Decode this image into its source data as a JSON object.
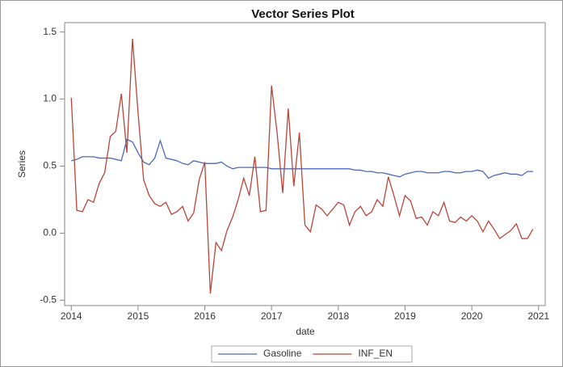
{
  "chart_data": {
    "type": "line",
    "title": "Vector Series Plot",
    "x_label": "date",
    "y_label": "Series",
    "x": [
      2014,
      2014.083,
      2014.167,
      2014.25,
      2014.333,
      2014.417,
      2014.5,
      2014.583,
      2014.667,
      2014.75,
      2014.833,
      2014.917,
      2015,
      2015.083,
      2015.167,
      2015.25,
      2015.333,
      2015.417,
      2015.5,
      2015.583,
      2015.667,
      2015.75,
      2015.833,
      2015.917,
      2016,
      2016.083,
      2016.167,
      2016.25,
      2016.333,
      2016.417,
      2016.5,
      2016.583,
      2016.667,
      2016.75,
      2016.833,
      2016.917,
      2017,
      2017.083,
      2017.167,
      2017.25,
      2017.333,
      2017.417,
      2017.5,
      2017.583,
      2017.667,
      2017.75,
      2017.833,
      2017.917,
      2018,
      2018.083,
      2018.167,
      2018.25,
      2018.333,
      2018.417,
      2018.5,
      2018.583,
      2018.667,
      2018.75,
      2018.833,
      2018.917,
      2019,
      2019.083,
      2019.167,
      2019.25,
      2019.333,
      2019.417,
      2019.5,
      2019.583,
      2019.667,
      2019.75,
      2019.833,
      2019.917,
      2020,
      2020.083,
      2020.167,
      2020.25,
      2020.333,
      2020.417,
      2020.5,
      2020.583,
      2020.667,
      2020.75,
      2020.833,
      2020.917
    ],
    "series": [
      {
        "name": "Gasoline",
        "color": "#4a6ab8",
        "values": [
          0.54,
          0.55,
          0.57,
          0.57,
          0.57,
          0.56,
          0.56,
          0.56,
          0.55,
          0.54,
          0.7,
          0.68,
          0.6,
          0.53,
          0.51,
          0.56,
          0.69,
          0.56,
          0.55,
          0.54,
          0.52,
          0.51,
          0.54,
          0.53,
          0.52,
          0.52,
          0.52,
          0.53,
          0.5,
          0.48,
          0.49,
          0.49,
          0.49,
          0.49,
          0.49,
          0.49,
          0.48,
          0.48,
          0.48,
          0.48,
          0.48,
          0.48,
          0.48,
          0.48,
          0.48,
          0.48,
          0.48,
          0.48,
          0.48,
          0.48,
          0.48,
          0.47,
          0.47,
          0.46,
          0.46,
          0.45,
          0.45,
          0.44,
          0.43,
          0.42,
          0.44,
          0.45,
          0.46,
          0.46,
          0.45,
          0.45,
          0.45,
          0.46,
          0.46,
          0.45,
          0.45,
          0.46,
          0.46,
          0.47,
          0.46,
          0.41,
          0.43,
          0.44,
          0.45,
          0.44,
          0.44,
          0.43,
          0.46,
          0.46
        ]
      },
      {
        "name": "INF_EN",
        "color": "#b8453a",
        "values": [
          1.01,
          0.17,
          0.16,
          0.25,
          0.23,
          0.37,
          0.45,
          0.72,
          0.76,
          1.04,
          0.6,
          1.45,
          0.9,
          0.4,
          0.28,
          0.22,
          0.2,
          0.23,
          0.14,
          0.16,
          0.2,
          0.09,
          0.15,
          0.4,
          0.53,
          -0.45,
          -0.07,
          -0.13,
          0.02,
          0.12,
          0.25,
          0.41,
          0.28,
          0.57,
          0.16,
          0.17,
          1.1,
          0.75,
          0.3,
          0.93,
          0.35,
          0.75,
          0.06,
          0.01,
          0.21,
          0.18,
          0.13,
          0.18,
          0.23,
          0.21,
          0.06,
          0.16,
          0.2,
          0.13,
          0.16,
          0.25,
          0.2,
          0.42,
          0.28,
          0.13,
          0.28,
          0.24,
          0.11,
          0.12,
          0.06,
          0.16,
          0.13,
          0.23,
          0.09,
          0.08,
          0.12,
          0.09,
          0.13,
          0.09,
          0.01,
          0.09,
          0.03,
          -0.04,
          -0.01,
          0.02,
          0.07,
          -0.04,
          -0.04,
          0.03
        ]
      }
    ],
    "xlim": [
      2013.9,
      2021.1
    ],
    "xticks": [
      2014,
      2015,
      2016,
      2017,
      2018,
      2019,
      2020,
      2021
    ],
    "ylim": [
      -0.54,
      1.57
    ],
    "yticks": [
      -0.5,
      {
        "value": 0,
        "label": "0.0"
      },
      0.5,
      {
        "value": 1,
        "label": "1.0"
      },
      1.5
    ],
    "grid": false
  }
}
